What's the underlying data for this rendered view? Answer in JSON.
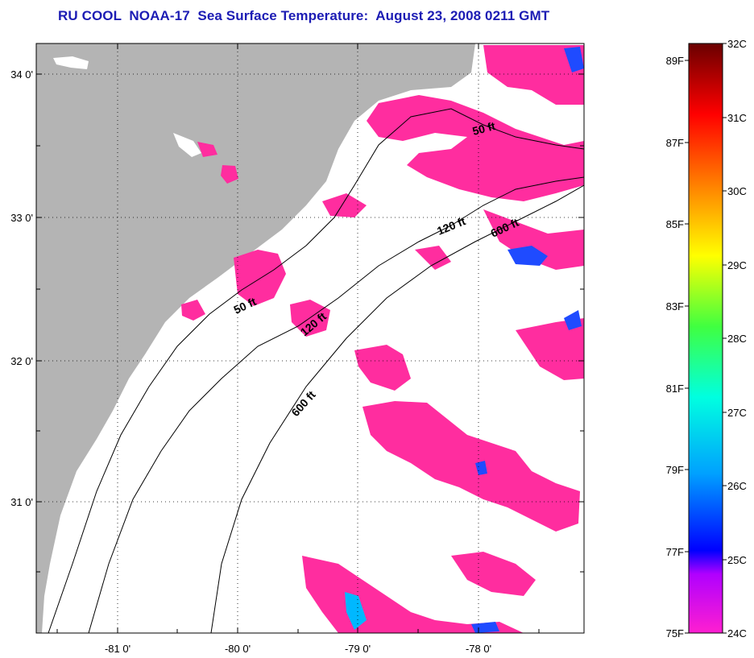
{
  "title": "RU COOL  NOAA-17  Sea Surface Temperature:  August 23, 2008 0211 GMT",
  "map": {
    "lon_ticks": [
      "-81 0'",
      "-80 0'",
      "-79 0'",
      "-78 0'"
    ],
    "lat_ticks": [
      "34 0'",
      "33 0'",
      "32 0'",
      "31 0'"
    ],
    "contour_labels": [
      "50 ft",
      "120 ft",
      "600 ft",
      "50 ft",
      "120 ft",
      "600 ft"
    ],
    "colors": {
      "land": "#b4b4b4",
      "no_data": "#ffffff",
      "sst_24c": "#ff2d9f",
      "sst_25c": "#1f4bff",
      "sst_26c": "#00b8ff"
    }
  },
  "colorbar": {
    "celsius_labels": [
      "32C",
      "31C",
      "30C",
      "29C",
      "28C",
      "27C",
      "26C",
      "25C",
      "24C"
    ],
    "fahrenheit_labels": [
      "89F",
      "87F",
      "85F",
      "83F",
      "81F",
      "79F",
      "77F",
      "75F"
    ]
  }
}
